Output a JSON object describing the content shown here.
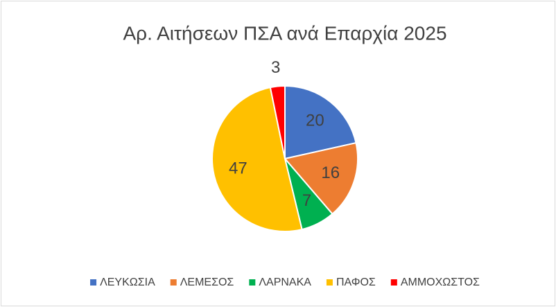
{
  "chart_data": {
    "type": "pie",
    "title": "Αρ. Αιτήσεων ΠΣΑ ανά Επαρχία 2025",
    "categories": [
      "ΛΕΥΚΩΣΙΑ",
      "ΛΕΜΕΣΟΣ",
      "ΛΑΡΝΑΚΑ",
      "ΠΑΦΟΣ",
      "ΑΜΜΟΧΩΣΤΟΣ"
    ],
    "values": [
      20,
      16,
      7,
      47,
      3
    ],
    "colors": [
      "#4472c4",
      "#ed7d31",
      "#00b050",
      "#ffc000",
      "#ff0000"
    ],
    "legend": "bottom"
  }
}
